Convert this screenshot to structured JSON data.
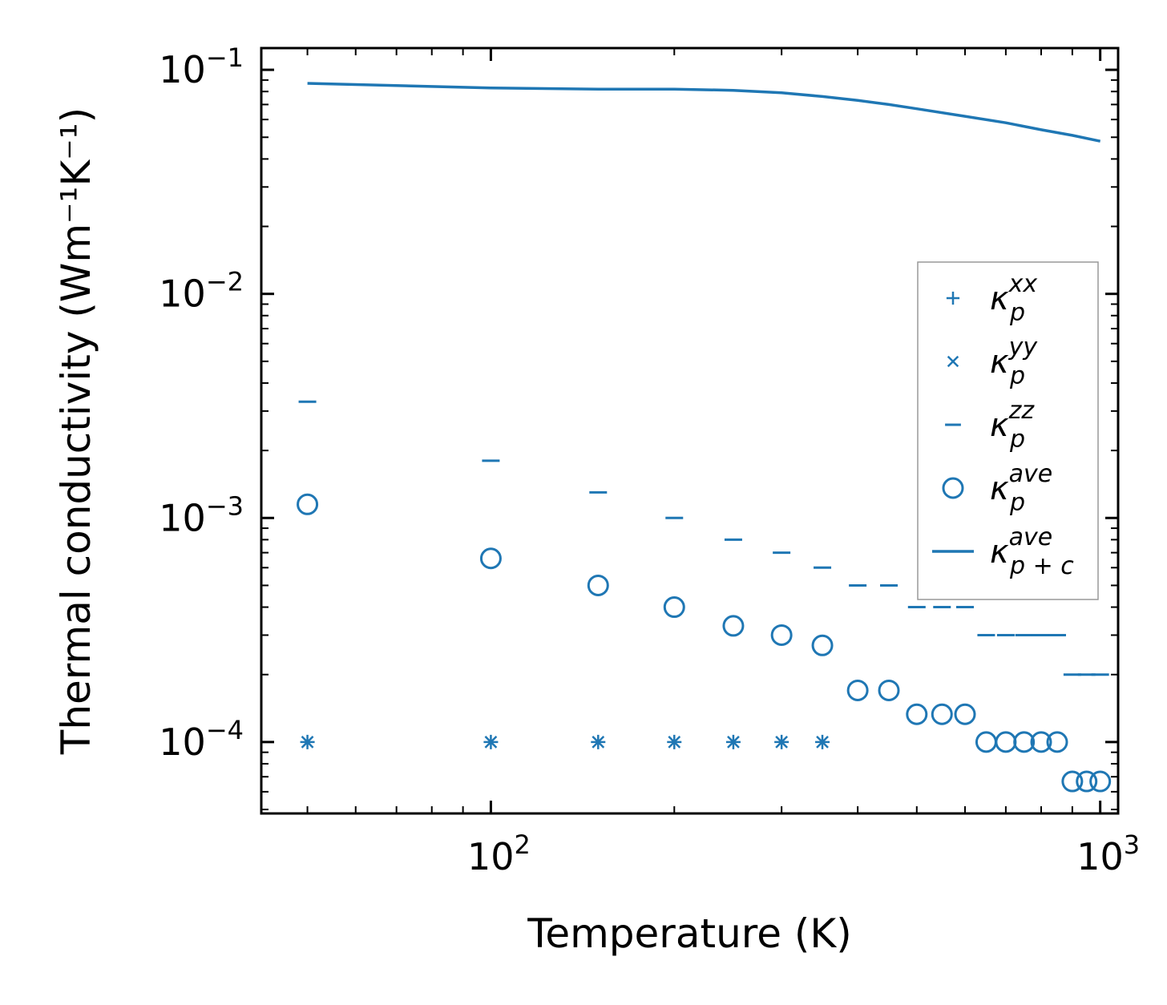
{
  "chart_data": {
    "type": "scatter",
    "xscale": "log",
    "yscale": "log",
    "xlabel": "Temperature (K)",
    "ylabel": "Thermal conductivity (Wm⁻¹K⁻¹)",
    "xlim": [
      42,
      1070
    ],
    "ylim": [
      4.8e-05,
      0.125
    ],
    "color": "#1f77b4",
    "x_ticks": [
      {
        "value": 100,
        "base": "10",
        "exp": "2"
      },
      {
        "value": 1000,
        "base": "10",
        "exp": "3"
      }
    ],
    "y_ticks": [
      {
        "value": 0.0001,
        "base": "10",
        "exp": "−4"
      },
      {
        "value": 0.001,
        "base": "10",
        "exp": "−3"
      },
      {
        "value": 0.01,
        "base": "10",
        "exp": "−2"
      },
      {
        "value": 0.1,
        "base": "10",
        "exp": "−1"
      }
    ],
    "series": [
      {
        "name": "kappa_p^xx",
        "label": {
          "sym": "κ",
          "sub": "p",
          "sup": "xx"
        },
        "marker": "plus",
        "x": [
          50,
          100,
          150,
          200,
          250,
          300,
          350
        ],
        "y": [
          0.0001,
          0.0001,
          0.0001,
          0.0001,
          0.0001,
          0.0001,
          0.0001
        ]
      },
      {
        "name": "kappa_p^yy",
        "label": {
          "sym": "κ",
          "sub": "p",
          "sup": "yy"
        },
        "marker": "x",
        "x": [
          50,
          100,
          150,
          200,
          250,
          300,
          350
        ],
        "y": [
          0.0001,
          0.0001,
          0.0001,
          0.0001,
          0.0001,
          0.0001,
          0.0001
        ]
      },
      {
        "name": "kappa_p^zz",
        "label": {
          "sym": "κ",
          "sub": "p",
          "sup": "zz"
        },
        "marker": "hline",
        "x": [
          50,
          100,
          150,
          200,
          250,
          300,
          350,
          400,
          450,
          500,
          550,
          600,
          650,
          700,
          750,
          800,
          850,
          900,
          950,
          1000
        ],
        "y": [
          0.0033,
          0.0018,
          0.0013,
          0.001,
          0.0008,
          0.0007,
          0.0006,
          0.0005,
          0.0005,
          0.0004,
          0.0004,
          0.0004,
          0.0003,
          0.0003,
          0.0003,
          0.0003,
          0.0003,
          0.0002,
          0.0002,
          0.0002
        ]
      },
      {
        "name": "kappa_p^ave",
        "label": {
          "sym": "κ",
          "sub": "p",
          "sup": "ave"
        },
        "marker": "circle",
        "x": [
          50,
          100,
          150,
          200,
          250,
          300,
          350,
          400,
          450,
          500,
          550,
          600,
          650,
          700,
          750,
          800,
          850,
          900,
          950,
          1000
        ],
        "y": [
          0.00115,
          0.00066,
          0.0005,
          0.0004,
          0.00033,
          0.0003,
          0.00027,
          0.00017,
          0.00017,
          0.000133,
          0.000133,
          0.000133,
          0.0001,
          0.0001,
          0.0001,
          0.0001,
          0.0001,
          6.67e-05,
          6.67e-05,
          6.67e-05
        ]
      },
      {
        "name": "kappa_p+c^ave",
        "label": {
          "sym": "κ",
          "sub": "p + c",
          "sup": "ave"
        },
        "marker": "line",
        "x": [
          50,
          100,
          150,
          200,
          250,
          300,
          350,
          400,
          450,
          500,
          600,
          700,
          800,
          900,
          1000
        ],
        "y": [
          0.087,
          0.083,
          0.082,
          0.082,
          0.081,
          0.079,
          0.076,
          0.073,
          0.07,
          0.067,
          0.062,
          0.058,
          0.054,
          0.051,
          0.048
        ]
      }
    ],
    "legend_position": "right-center"
  }
}
